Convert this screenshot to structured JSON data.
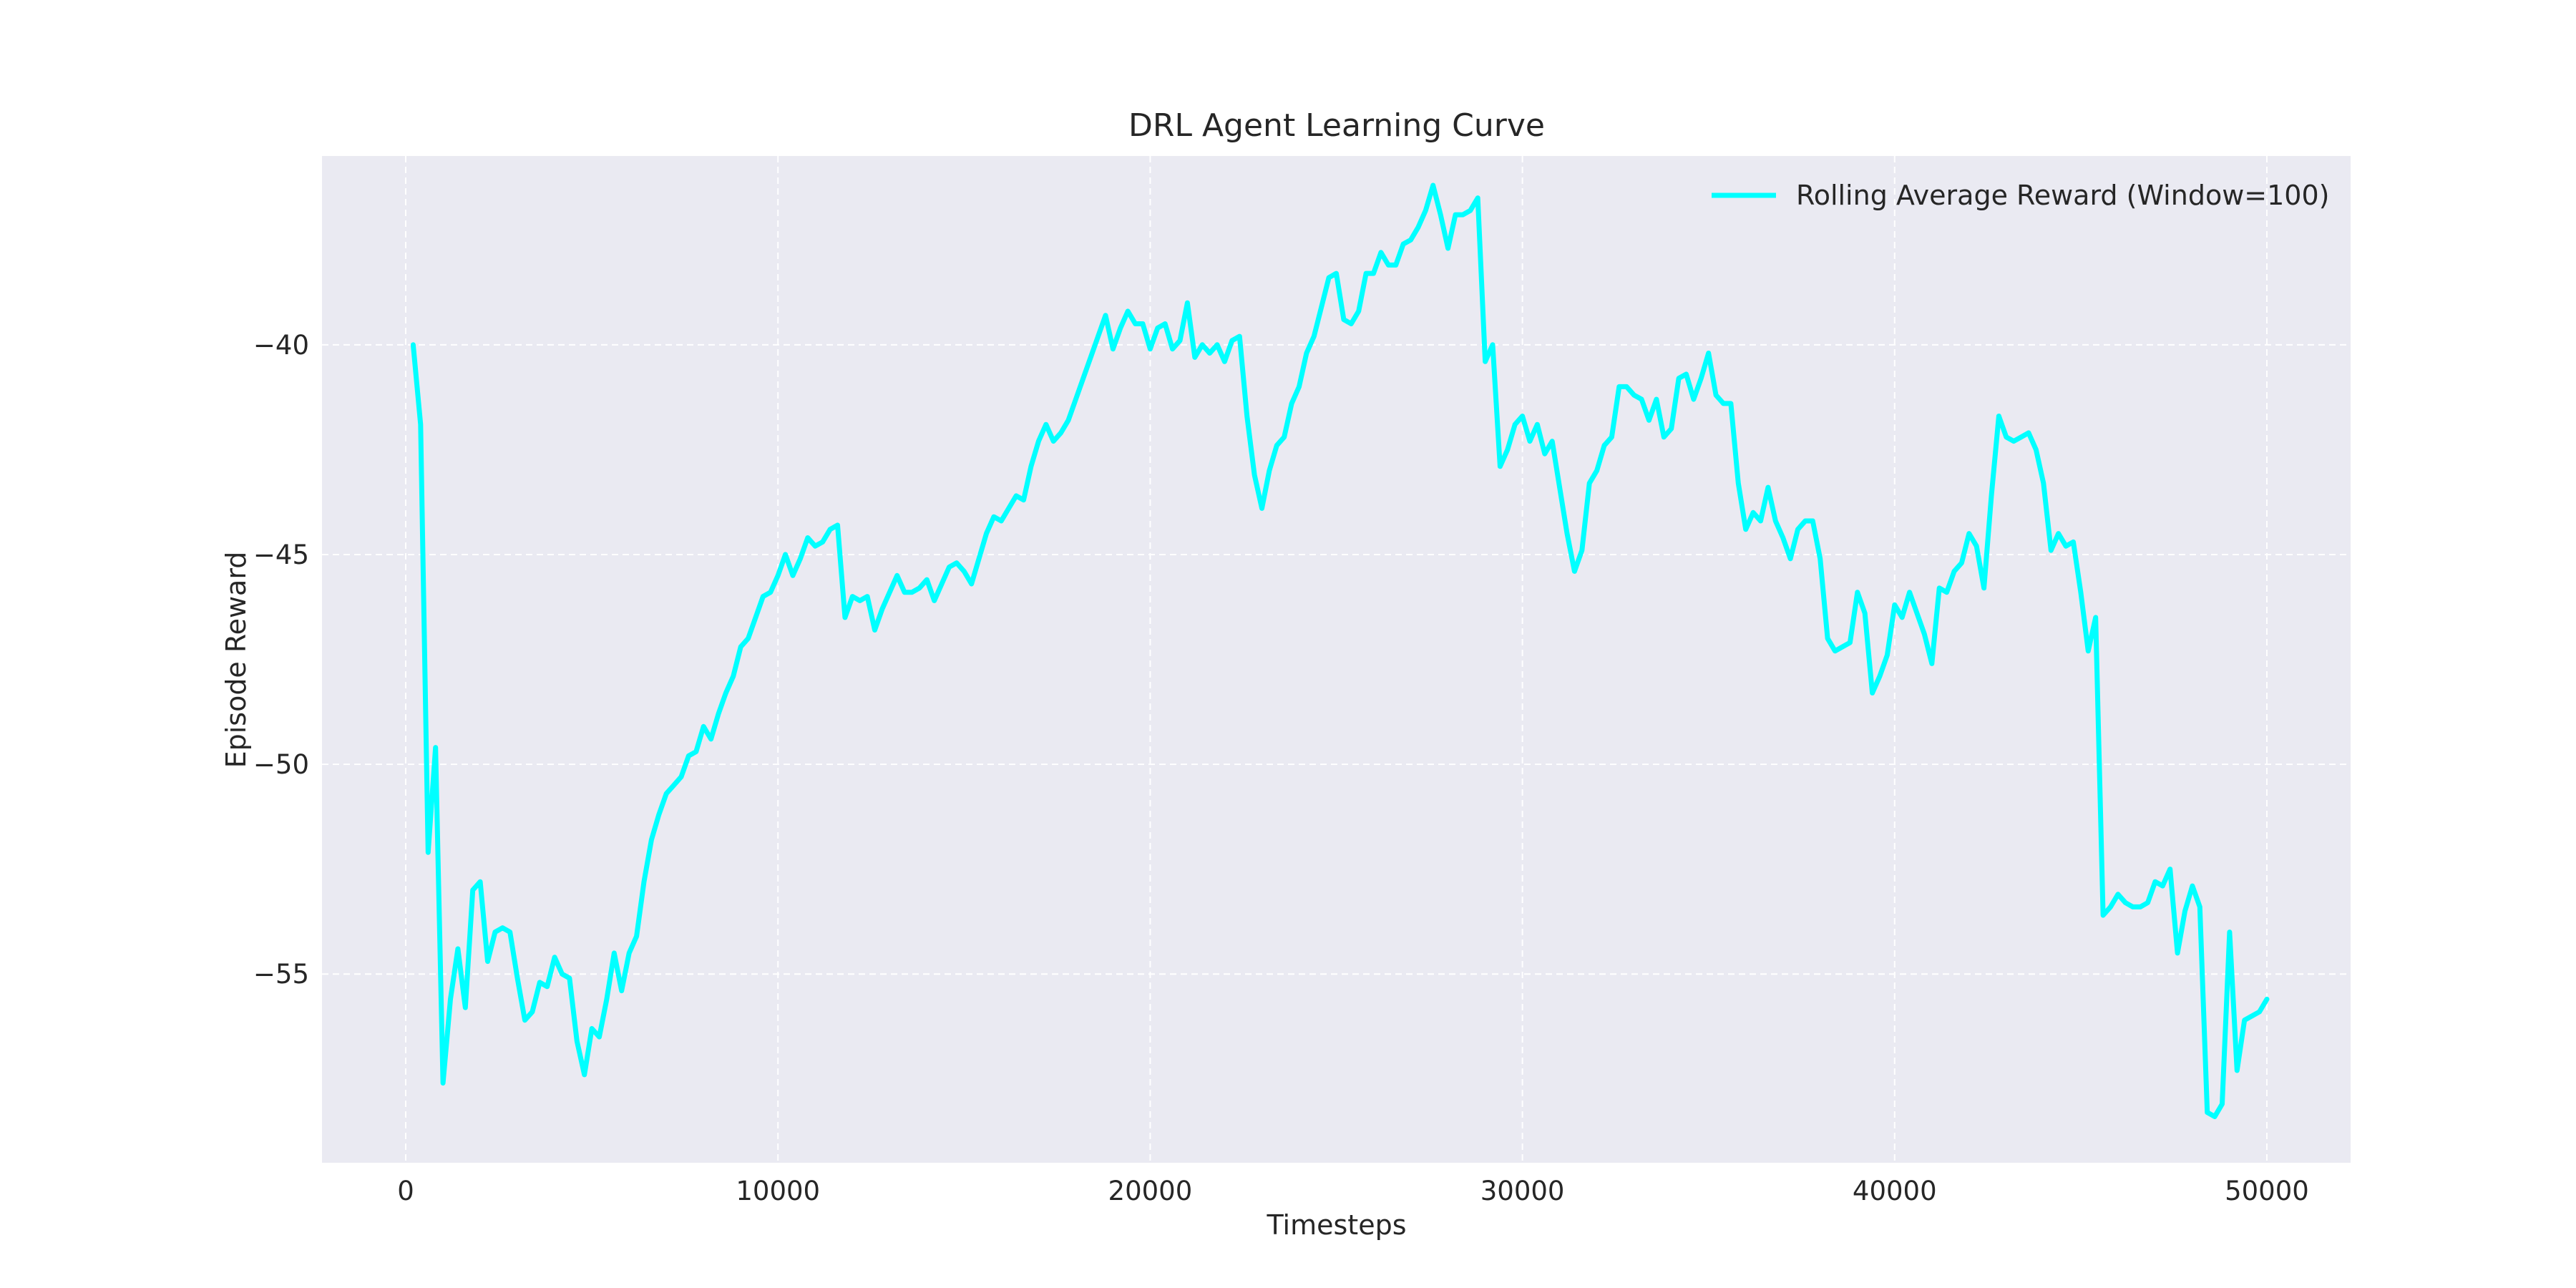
{
  "colors": {
    "figure_background": "#ffffff",
    "plot_background": "#eaeaf2",
    "grid": "#ffffff",
    "text": "#262626",
    "series": "#00ffff"
  },
  "chart_data": {
    "type": "line",
    "title": "DRL Agent Learning Curve",
    "xlabel": "Timesteps",
    "ylabel": "Episode Reward",
    "xlim": [
      -2250,
      52250
    ],
    "ylim": [
      -59.5,
      -35.5
    ],
    "x_ticks": [
      0,
      10000,
      20000,
      30000,
      40000,
      50000
    ],
    "x_tick_labels": [
      "0",
      "10000",
      "20000",
      "30000",
      "40000",
      "50000"
    ],
    "y_ticks": [
      -55,
      -50,
      -45,
      -40
    ],
    "y_tick_labels": [
      "−55",
      "−50",
      "−45",
      "−40"
    ],
    "grid": true,
    "legend_position": "top-right",
    "series": [
      {
        "name": "Rolling Average Reward (Window=100)",
        "color": "#00ffff",
        "x": [
          200,
          400,
          600,
          800,
          1000,
          1200,
          1400,
          1600,
          1800,
          2000,
          2200,
          2400,
          2600,
          2800,
          3000,
          3200,
          3400,
          3600,
          3800,
          4000,
          4200,
          4400,
          4600,
          4800,
          5000,
          5200,
          5400,
          5600,
          5800,
          6000,
          6200,
          6400,
          6600,
          6800,
          7000,
          7200,
          7400,
          7600,
          7800,
          8000,
          8200,
          8400,
          8600,
          8800,
          9000,
          9200,
          9400,
          9600,
          9800,
          10000,
          10200,
          10400,
          10600,
          10800,
          11000,
          11200,
          11400,
          11600,
          11800,
          12000,
          12200,
          12400,
          12600,
          12800,
          13000,
          13200,
          13400,
          13600,
          13800,
          14000,
          14200,
          14400,
          14600,
          14800,
          15000,
          15200,
          15400,
          15600,
          15800,
          16000,
          16200,
          16400,
          16600,
          16800,
          17000,
          17200,
          17400,
          17600,
          17800,
          18000,
          18200,
          18400,
          18600,
          18800,
          19000,
          19200,
          19400,
          19600,
          19800,
          20000,
          20200,
          20400,
          20600,
          20800,
          21000,
          21200,
          21400,
          21600,
          21800,
          22000,
          22200,
          22400,
          22600,
          22800,
          23000,
          23200,
          23400,
          23600,
          23800,
          24000,
          24200,
          24400,
          24600,
          24800,
          25000,
          25200,
          25400,
          25600,
          25800,
          26000,
          26200,
          26400,
          26600,
          26800,
          27000,
          27200,
          27400,
          27600,
          27800,
          28000,
          28200,
          28400,
          28600,
          28800,
          29000,
          29200,
          29400,
          29600,
          29800,
          30000,
          30200,
          30400,
          30600,
          30800,
          31000,
          31200,
          31400,
          31600,
          31800,
          32000,
          32200,
          32400,
          32600,
          32800,
          33000,
          33200,
          33400,
          33600,
          33800,
          34000,
          34200,
          34400,
          34600,
          34800,
          35000,
          35200,
          35400,
          35600,
          35800,
          36000,
          36200,
          36400,
          36600,
          36800,
          37000,
          37200,
          37400,
          37600,
          37800,
          38000,
          38200,
          38400,
          38600,
          38800,
          39000,
          39200,
          39400,
          39600,
          39800,
          40000,
          40200,
          40400,
          40600,
          40800,
          41000,
          41200,
          41400,
          41600,
          41800,
          42000,
          42200,
          42400,
          42600,
          42800,
          43000,
          43200,
          43400,
          43600,
          43800,
          44000,
          44200,
          44400,
          44600,
          44800,
          45000,
          45200,
          45400,
          45600,
          45800,
          46000,
          46200,
          46400,
          46600,
          46800,
          47000,
          47200,
          47400,
          47600,
          47800,
          48000,
          48200,
          48400,
          48600,
          48800,
          49000,
          49200,
          49400,
          49600,
          49800,
          50000
        ],
        "y": [
          -40.0,
          -41.9,
          -52.1,
          -49.6,
          -57.6,
          -55.6,
          -54.4,
          -55.8,
          -53.0,
          -52.8,
          -54.7,
          -54.0,
          -53.9,
          -54.0,
          -55.1,
          -56.1,
          -55.9,
          -55.2,
          -55.3,
          -54.6,
          -55.0,
          -55.1,
          -56.6,
          -57.4,
          -56.3,
          -56.5,
          -55.6,
          -54.5,
          -55.4,
          -54.5,
          -54.1,
          -52.8,
          -51.8,
          -51.2,
          -50.7,
          -50.5,
          -50.3,
          -49.8,
          -49.7,
          -49.1,
          -49.4,
          -48.8,
          -48.3,
          -47.9,
          -47.2,
          -47.0,
          -46.5,
          -46.0,
          -45.9,
          -45.5,
          -45.0,
          -45.5,
          -45.1,
          -44.6,
          -44.8,
          -44.7,
          -44.4,
          -44.3,
          -46.5,
          -46.0,
          -46.1,
          -46.0,
          -46.8,
          -46.3,
          -45.9,
          -45.5,
          -45.9,
          -45.9,
          -45.8,
          -45.6,
          -46.1,
          -45.7,
          -45.3,
          -45.2,
          -45.4,
          -45.7,
          -45.1,
          -44.5,
          -44.1,
          -44.2,
          -43.9,
          -43.6,
          -43.7,
          -42.9,
          -42.3,
          -41.9,
          -42.3,
          -42.1,
          -41.8,
          -41.3,
          -40.8,
          -40.3,
          -39.8,
          -39.3,
          -40.1,
          -39.6,
          -39.2,
          -39.5,
          -39.5,
          -40.1,
          -39.6,
          -39.5,
          -40.1,
          -39.9,
          -39.0,
          -40.3,
          -40.0,
          -40.2,
          -40.0,
          -40.4,
          -39.9,
          -39.8,
          -41.7,
          -43.1,
          -43.9,
          -43.0,
          -42.4,
          -42.2,
          -41.4,
          -41.0,
          -40.2,
          -39.8,
          -39.1,
          -38.4,
          -38.3,
          -39.4,
          -39.5,
          -39.2,
          -38.3,
          -38.3,
          -37.8,
          -38.1,
          -38.1,
          -37.6,
          -37.5,
          -37.2,
          -36.8,
          -36.2,
          -36.9,
          -37.7,
          -36.9,
          -36.9,
          -36.8,
          -36.5,
          -40.4,
          -40.0,
          -42.9,
          -42.5,
          -41.9,
          -41.7,
          -42.3,
          -41.9,
          -42.6,
          -42.3,
          -43.4,
          -44.5,
          -45.4,
          -44.9,
          -43.3,
          -43.0,
          -42.4,
          -42.2,
          -41.0,
          -41.0,
          -41.2,
          -41.3,
          -41.8,
          -41.3,
          -42.2,
          -42.0,
          -40.8,
          -40.7,
          -41.3,
          -40.8,
          -40.2,
          -41.2,
          -41.4,
          -41.4,
          -43.3,
          -44.4,
          -44.0,
          -44.2,
          -43.4,
          -44.2,
          -44.6,
          -45.1,
          -44.4,
          -44.2,
          -44.2,
          -45.1,
          -47.0,
          -47.3,
          -47.2,
          -47.1,
          -45.9,
          -46.4,
          -48.3,
          -47.9,
          -47.4,
          -46.2,
          -46.5,
          -45.9,
          -46.4,
          -46.9,
          -47.6,
          -45.8,
          -45.9,
          -45.4,
          -45.2,
          -44.5,
          -44.8,
          -45.8,
          -43.6,
          -41.7,
          -42.2,
          -42.3,
          -42.2,
          -42.1,
          -42.5,
          -43.3,
          -44.9,
          -44.5,
          -44.8,
          -44.7,
          -45.9,
          -47.3,
          -46.5,
          -53.6,
          -53.4,
          -53.1,
          -53.3,
          -53.4,
          -53.4,
          -53.3,
          -52.8,
          -52.9,
          -52.5,
          -54.5,
          -53.5,
          -52.9,
          -53.4,
          -58.3,
          -58.4,
          -58.1,
          -54.0,
          -57.3,
          -56.1,
          -56.0,
          -55.9,
          -55.6
        ]
      }
    ]
  }
}
